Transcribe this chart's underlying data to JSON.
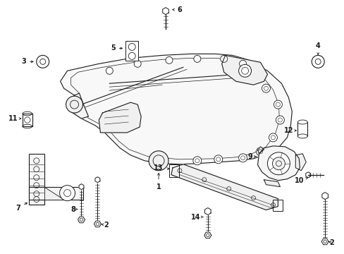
{
  "background_color": "#ffffff",
  "line_color": "#1a1a1a",
  "label_color": "#1a1a1a",
  "figsize": [
    4.89,
    3.6
  ],
  "dpi": 100
}
